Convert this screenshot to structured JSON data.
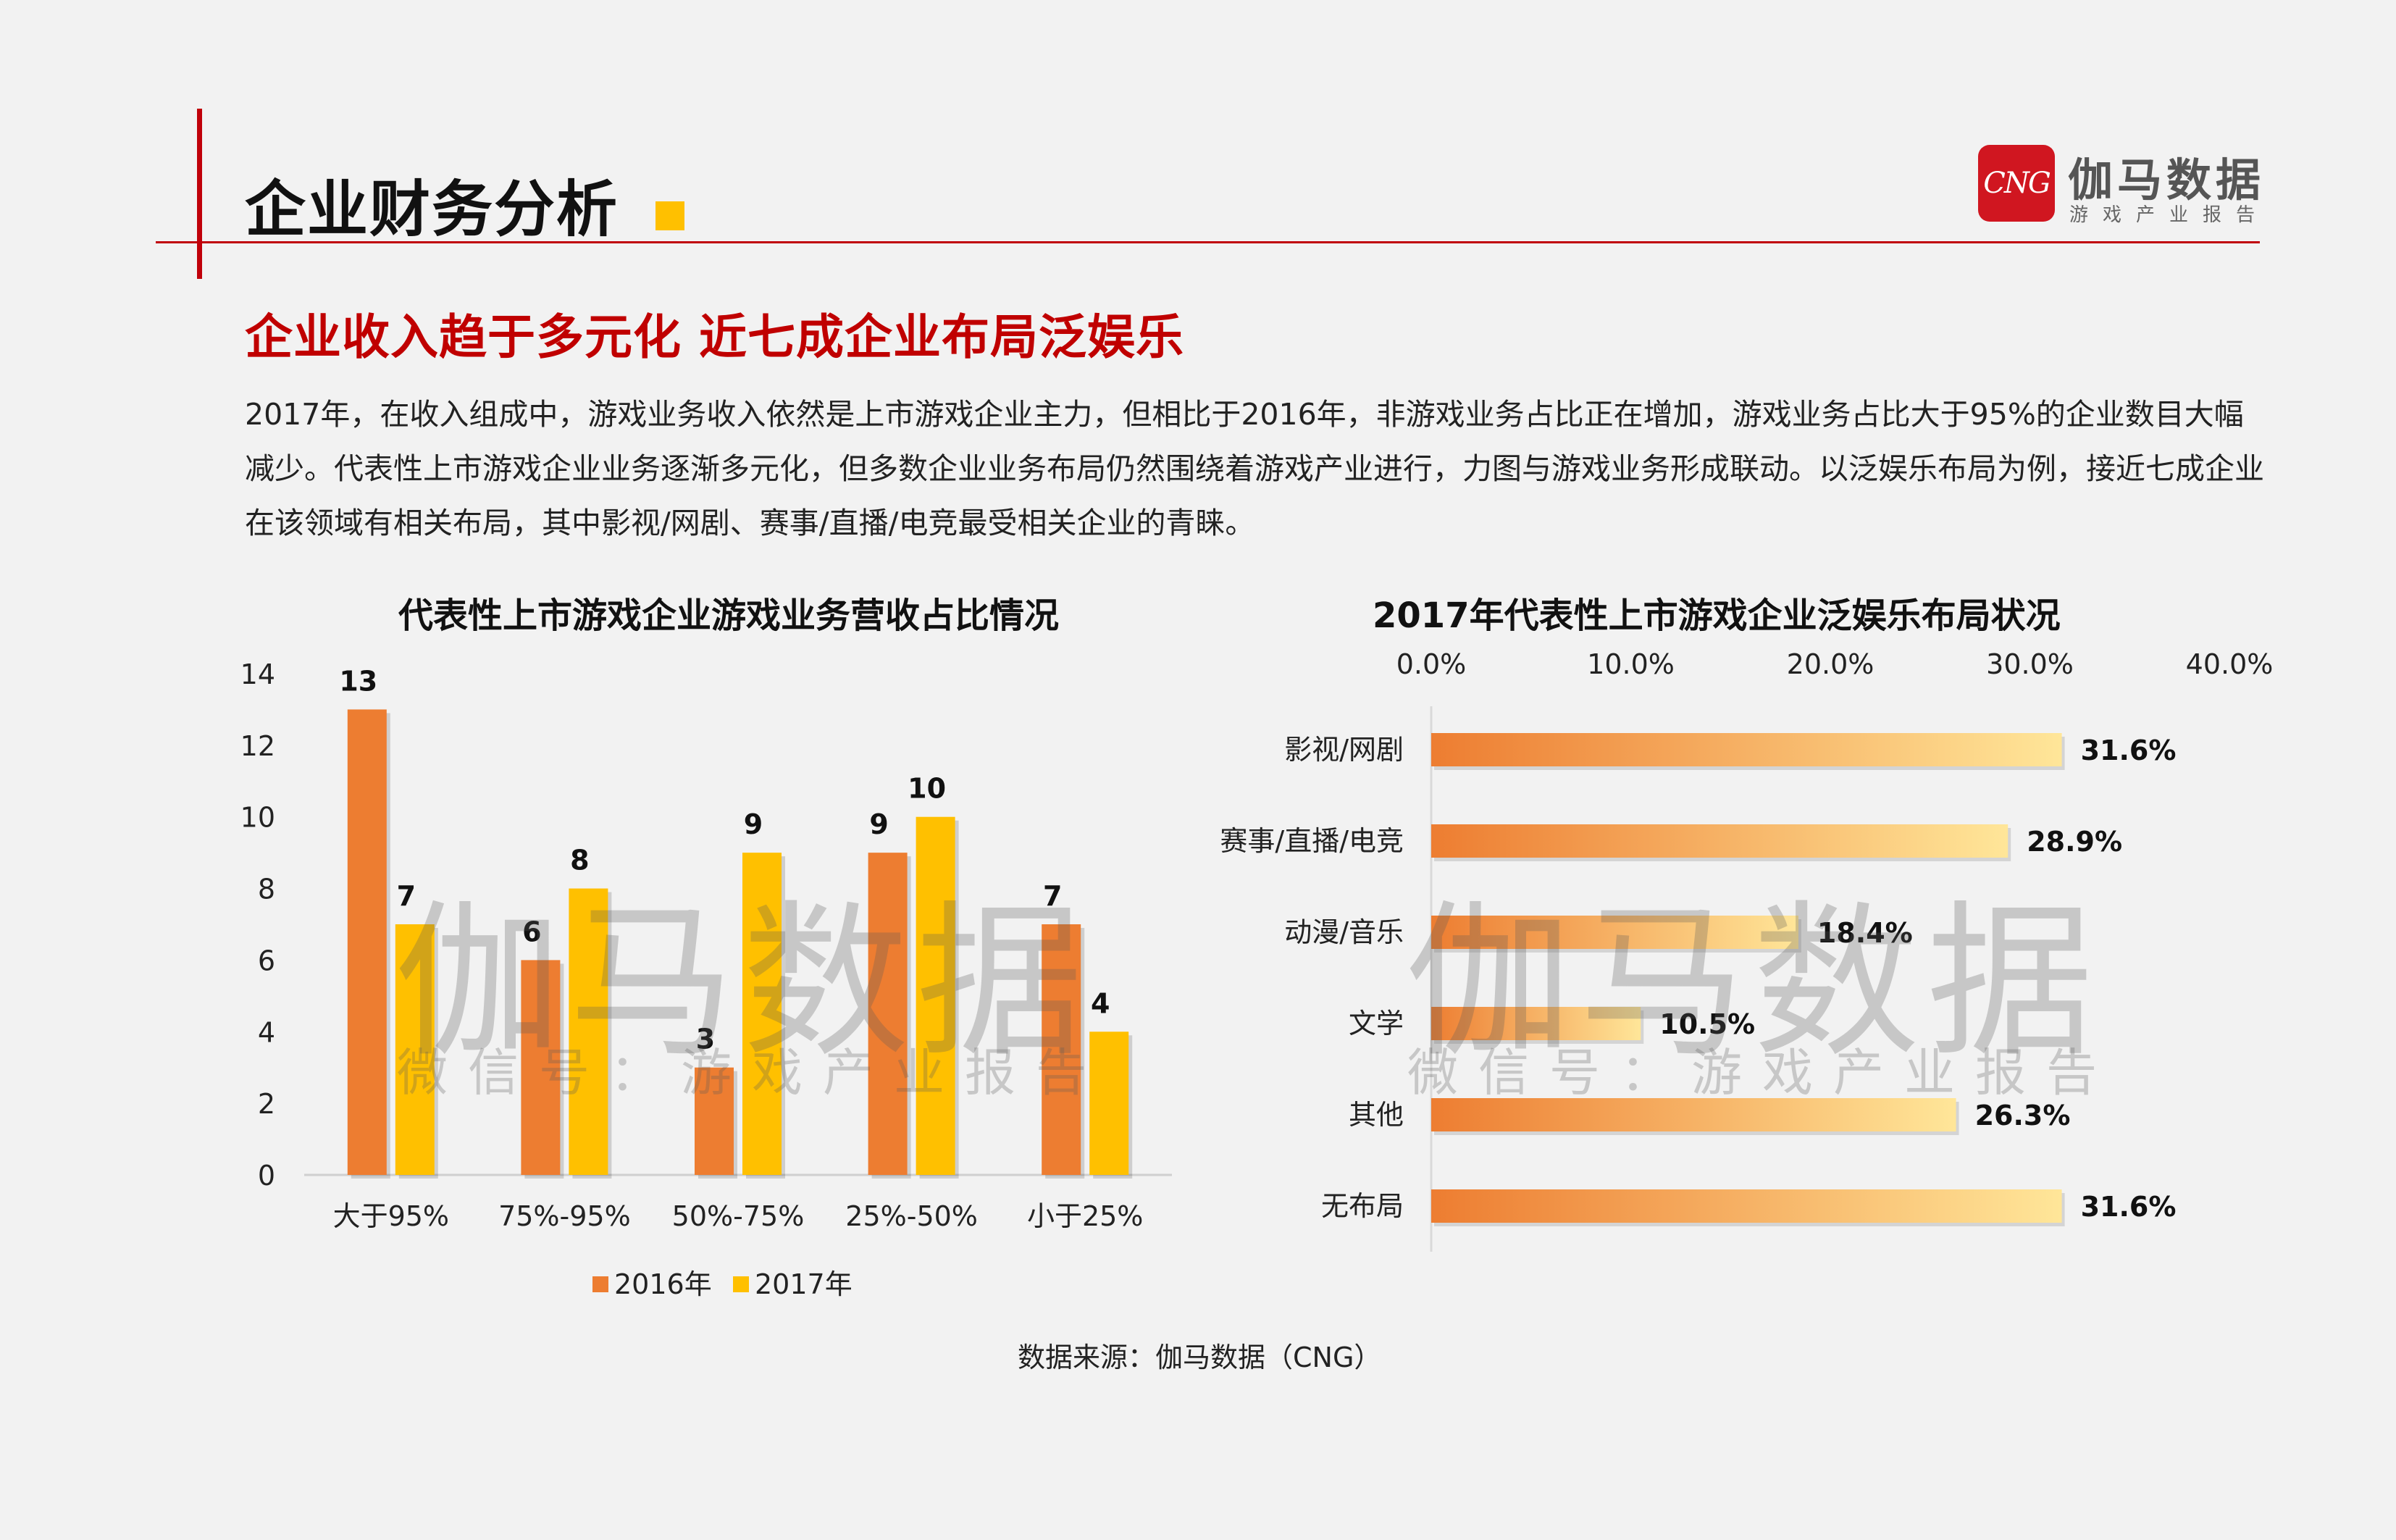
{
  "header": {
    "title": "企业财务分析",
    "logo_mark": "CNG",
    "logo_name": "伽马数据",
    "logo_tagline": "游戏产业报告"
  },
  "subtitle": "企业收入趋于多元化  近七成企业布局泛娱乐",
  "paragraph": "2017年，在收入组成中，游戏业务收入依然是上市游戏企业主力，但相比于2016年，非游戏业务占比正在增加，游戏业务占比大于95%的企业数目大幅减少。代表性上市游戏企业业务逐渐多元化，但多数企业业务布局仍然围绕着游戏产业进行，力图与游戏业务形成联动。以泛娱乐布局为例，接近七成企业在该领域有相关布局，其中影视/网剧、赛事/直播/电竞最受相关企业的青睐。",
  "watermark": {
    "main": "伽马数据",
    "sub": "微信号：游戏产业报告"
  },
  "source": "数据来源：伽马数据（CNG）",
  "colors": {
    "accent_red": "#c0000a",
    "series_2016": "#ed7d31",
    "series_2017": "#ffc000",
    "bar_gradient_start": "#ed7d31",
    "bar_gradient_end": "#ffe699"
  },
  "chart_data": [
    {
      "type": "bar",
      "title": "代表性上市游戏企业游戏业务营收占比情况",
      "categories": [
        "大于95%",
        "75%-95%",
        "50%-75%",
        "25%-50%",
        "小于25%"
      ],
      "series": [
        {
          "name": "2016年",
          "values": [
            13,
            6,
            3,
            9,
            7
          ]
        },
        {
          "name": "2017年",
          "values": [
            7,
            8,
            9,
            10,
            4
          ]
        }
      ],
      "ylim": [
        0,
        14
      ],
      "yticks": [
        "0",
        "2",
        "4",
        "6",
        "8",
        "10",
        "12",
        "14"
      ],
      "legend": "bottom",
      "grid": false
    },
    {
      "type": "bar",
      "orientation": "horizontal",
      "title": "2017年代表性上市游戏企业泛娱乐布局状况",
      "categories": [
        "影视/网剧",
        "赛事/直播/电竞",
        "动漫/音乐",
        "文学",
        "其他",
        "无布局"
      ],
      "values": [
        31.6,
        28.9,
        18.4,
        10.5,
        26.3,
        31.6
      ],
      "labels": [
        "31.6%",
        "28.9%",
        "18.4%",
        "10.5%",
        "26.3%",
        "31.6%"
      ],
      "xlim": [
        0,
        40
      ],
      "xticks": [
        "0.0%",
        "10.0%",
        "20.0%",
        "30.0%",
        "40.0%"
      ],
      "xaxis_position": "top",
      "grid": false
    }
  ]
}
